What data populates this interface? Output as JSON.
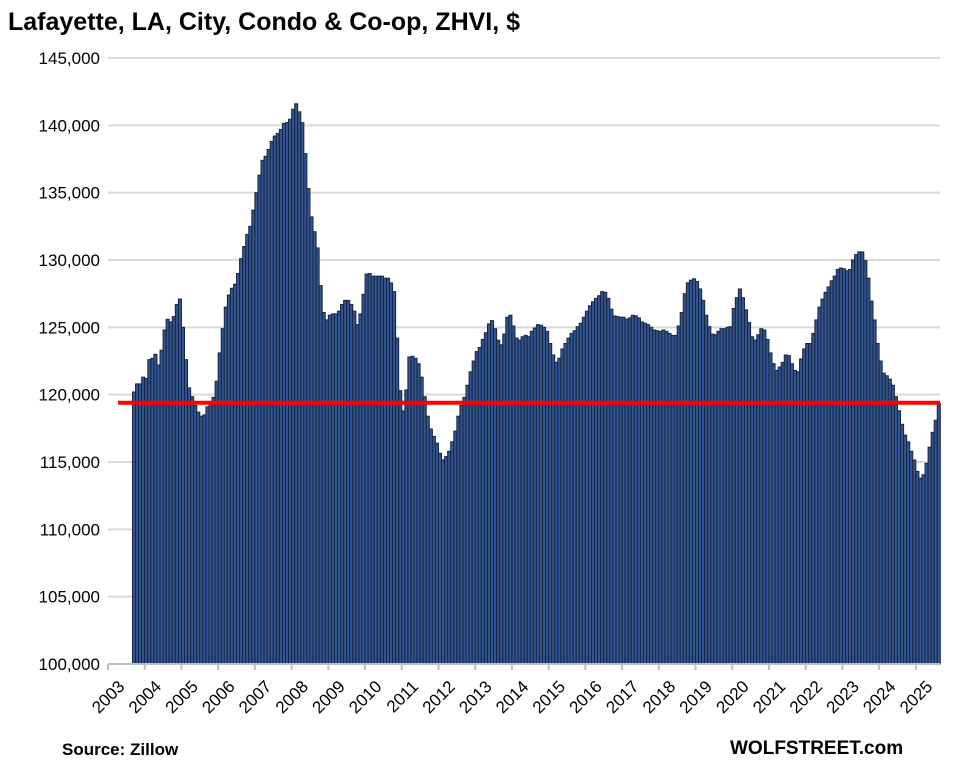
{
  "chart_data": {
    "type": "bar",
    "title": "Lafayette, LA, City, Condo & Co-op, ZHVI, $",
    "xlabel": "",
    "ylabel": "",
    "start_month": "2003-09",
    "end_month": "2025-08",
    "frequency": "monthly",
    "ylim": [
      100000,
      145000
    ],
    "yticks": [
      "100,000",
      "105,000",
      "110,000",
      "115,000",
      "120,000",
      "125,000",
      "130,000",
      "135,000",
      "140,000",
      "145,000"
    ],
    "xticks": [
      "2003",
      "2004",
      "2005",
      "2006",
      "2007",
      "2008",
      "2009",
      "2010",
      "2011",
      "2012",
      "2013",
      "2014",
      "2015",
      "2016",
      "2017",
      "2018",
      "2019",
      "2020",
      "2021",
      "2022",
      "2023",
      "2024",
      "2025"
    ],
    "grid": true,
    "reference_line": {
      "value": 119400,
      "color": "#ff0000"
    },
    "bar_color": "#2f5597",
    "bar_edge_color": "#1c2536",
    "values": [
      120200,
      120800,
      120800,
      121300,
      121200,
      122600,
      122700,
      123000,
      122200,
      123300,
      124800,
      125600,
      125400,
      125800,
      126700,
      127100,
      125000,
      122600,
      120500,
      119850,
      119200,
      118700,
      118400,
      118500,
      119100,
      119300,
      119800,
      121000,
      123100,
      124900,
      126500,
      127400,
      127900,
      128200,
      129000,
      130100,
      131000,
      131900,
      132500,
      133700,
      135000,
      136300,
      137400,
      137700,
      138200,
      138800,
      139200,
      139400,
      139700,
      140150,
      140200,
      140450,
      141200,
      141600,
      141000,
      140200,
      137900,
      135300,
      133200,
      132100,
      130900,
      128100,
      126100,
      125550,
      125900,
      126000,
      126000,
      126200,
      126700,
      127000,
      127000,
      126700,
      126200,
      125200,
      126000,
      127450,
      128950,
      129000,
      128800,
      128800,
      128800,
      128800,
      128650,
      128650,
      128300,
      127650,
      124200,
      120300,
      118800,
      120350,
      122800,
      122850,
      122700,
      122300,
      121300,
      119850,
      118400,
      117450,
      116900,
      116400,
      115650,
      115150,
      115400,
      115800,
      116500,
      117300,
      118400,
      119200,
      119800,
      120700,
      121700,
      122500,
      123200,
      123500,
      124100,
      124600,
      125250,
      125500,
      124900,
      124050,
      123700,
      124500,
      125750,
      125900,
      125100,
      124200,
      124050,
      124300,
      124400,
      124300,
      124700,
      124950,
      125200,
      125150,
      125000,
      124700,
      123800,
      122950,
      122400,
      122700,
      123400,
      123800,
      124200,
      124550,
      124750,
      125050,
      125300,
      125750,
      126200,
      126600,
      126900,
      127150,
      127350,
      127650,
      127600,
      127150,
      126350,
      125850,
      125800,
      125750,
      125750,
      125600,
      125700,
      125900,
      125850,
      125700,
      125400,
      125300,
      125200,
      125000,
      124800,
      124750,
      124700,
      124800,
      124700,
      124550,
      124400,
      124400,
      125100,
      126100,
      127500,
      128300,
      128500,
      128600,
      128400,
      127850,
      127000,
      125900,
      125050,
      124500,
      124450,
      124700,
      124900,
      124900,
      125000,
      125050,
      126400,
      127200,
      127850,
      127200,
      126300,
      125350,
      124300,
      124050,
      124450,
      124900,
      124800,
      124100,
      123100,
      122300,
      121800,
      122050,
      122400,
      122950,
      122900,
      122300,
      121800,
      121700,
      122650,
      123400,
      123800,
      123800,
      124550,
      125550,
      126500,
      127100,
      127600,
      128000,
      128450,
      128800,
      129300,
      129400,
      129350,
      129200,
      129300,
      130000,
      130400,
      130600,
      130600,
      129950,
      128650,
      126950,
      125550,
      123800,
      122500,
      121600,
      121400,
      121150,
      120700,
      119850,
      118800,
      117800,
      117000,
      116500,
      115800,
      115150,
      114300,
      113800,
      114050,
      114900,
      116100,
      117200,
      118100,
      119350
    ]
  },
  "footer": {
    "source": "Source: Zillow",
    "brand": "WOLFSTREET.com"
  }
}
